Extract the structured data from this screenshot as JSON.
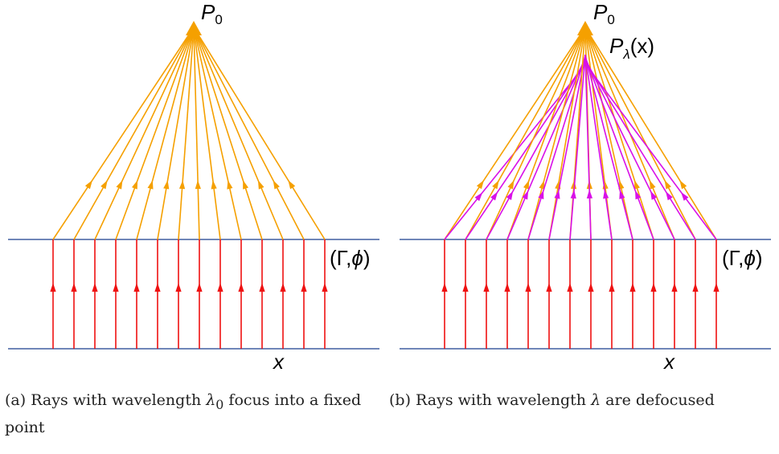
{
  "colors": {
    "incoming_ray": "#ee1111",
    "focused_ray": "#f5a000",
    "defocused_ray": "#d810e8",
    "plane": "#6f86b8"
  },
  "panel_a": {
    "apex_label": "P",
    "apex_subscript": "0",
    "surface_label_left": "(Γ,",
    "surface_label_phi": "ϕ",
    "surface_label_right": ")",
    "axis_label": "x"
  },
  "panel_b": {
    "apex_label": "P",
    "apex_subscript": "0",
    "defocus_label": "P",
    "defocus_subscript": "λ",
    "defocus_arg": "(x)",
    "surface_label_left": "(Γ,",
    "surface_label_phi": "ϕ",
    "surface_label_right": ")",
    "axis_label": "x"
  },
  "captions": {
    "a_prefix": "(a) Rays with wavelength ",
    "a_symbol": "λ",
    "a_subscript": "0",
    "a_suffix": " focus into a fixed point",
    "b_prefix": "(b) Rays with wavelength ",
    "b_symbol": "λ",
    "b_suffix": " are defocused"
  }
}
